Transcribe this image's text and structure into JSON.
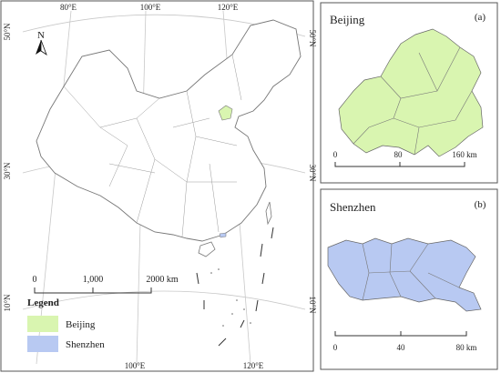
{
  "main_map": {
    "lon_labels_top": [
      "80°E",
      "100°E",
      "120°E"
    ],
    "lon_labels_bottom": [
      "100°E",
      "120°E"
    ],
    "lat_labels_left": [
      "50°N",
      "30°N",
      "10°N"
    ],
    "lat_labels_right": [
      "50°N",
      "30°N",
      "10°N"
    ],
    "north": "N",
    "scale_bar": {
      "labels": [
        "0",
        "1,000",
        "2000 km"
      ]
    },
    "legend": {
      "title": "Legend",
      "items": [
        {
          "label": "Beijing",
          "color": "#d9f5b0"
        },
        {
          "label": "Shenzhen",
          "color": "#b8c9f2"
        }
      ]
    }
  },
  "insets": [
    {
      "title": "Beijing",
      "tag": "(a)",
      "scale_labels": [
        "0",
        "80",
        "160 km"
      ],
      "color": "#d9f5b0"
    },
    {
      "title": "Shenzhen",
      "tag": "(b)",
      "scale_labels": [
        "0",
        "40",
        "80 km"
      ],
      "color": "#b8c9f2"
    }
  ]
}
